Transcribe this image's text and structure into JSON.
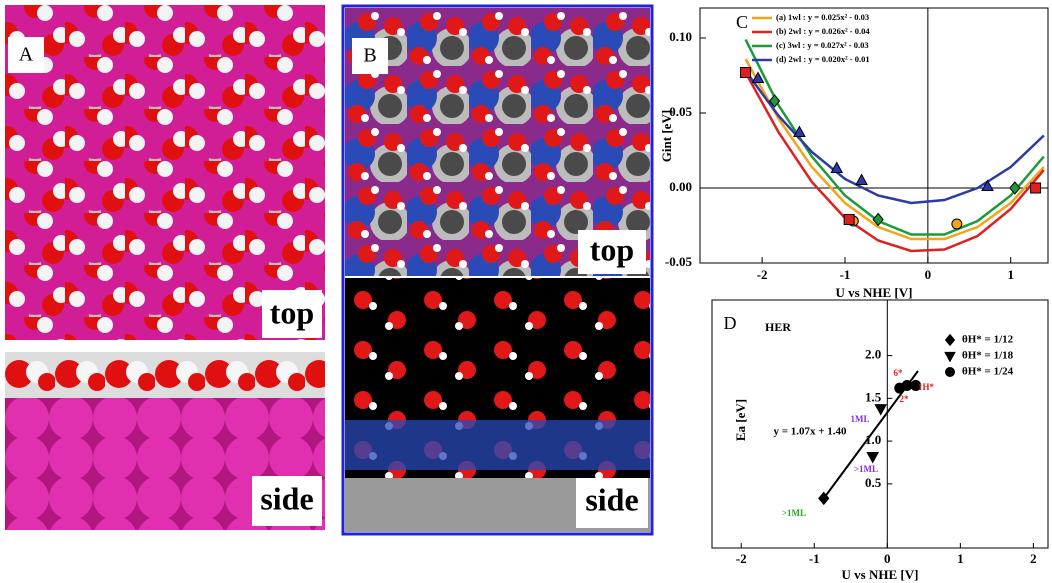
{
  "panels": [
    {
      "label": "A",
      "views": [
        "top",
        "side"
      ]
    },
    {
      "label": "B",
      "views": [
        "top",
        "side"
      ]
    }
  ],
  "chart_data": [
    {
      "type": "line",
      "panel": "C",
      "y_label": "Gint [eV]",
      "x_label": "U vs NHE [V]",
      "xlim": [
        -2.75,
        1.45
      ],
      "ylim": [
        -0.05,
        0.12
      ],
      "xticks": [
        -2,
        -1,
        0,
        1
      ],
      "yticks": [
        {
          "value": -0.05,
          "label": "-0.05"
        },
        {
          "value": 0,
          "label": "0.00"
        },
        {
          "value": 0.05,
          "label": "0.05"
        },
        {
          "value": 0.1,
          "label": "0.10"
        }
      ],
      "x": [
        -2.2,
        -1.8,
        -1.4,
        -1.0,
        -0.6,
        -0.2,
        0.2,
        0.6,
        1.0,
        1.4
      ],
      "series": [
        {
          "name": "(a) 1wl : y = 0.025x² - 0.03",
          "color": "#f2a51a",
          "marker": "circle",
          "values": [
            0.086,
            0.046,
            0.014,
            -0.01,
            -0.026,
            -0.034,
            -0.034,
            -0.026,
            -0.01,
            0.014
          ],
          "points_x": [
            -0.9,
            0.35
          ],
          "points_y": [
            -0.022,
            -0.024
          ]
        },
        {
          "name": "(b) 2wl : y = 0.026x² - 0.04",
          "color": "#e02020",
          "marker": "square",
          "values": [
            0.077,
            0.037,
            0.004,
            -0.02,
            -0.035,
            -0.042,
            -0.041,
            -0.032,
            -0.014,
            0.012
          ],
          "points_x": [
            -2.2,
            -0.95,
            1.3
          ],
          "points_y": [
            0.077,
            -0.021,
            0.0
          ]
        },
        {
          "name": "(c) 3wl : y = 0.027x² - 0.03",
          "color": "#1a9a3a",
          "marker": "diamond",
          "values": [
            0.099,
            0.055,
            0.021,
            -0.005,
            -0.022,
            -0.031,
            -0.031,
            -0.022,
            -0.005,
            0.021
          ],
          "points_x": [
            -1.85,
            -0.6,
            1.05
          ],
          "points_y": [
            0.058,
            -0.021,
            0.0
          ]
        },
        {
          "name": "(d) 2wl : y = 0.020x² - 0.01",
          "color": "#2a3aa8",
          "marker": "triangle",
          "values": [
            0.078,
            0.048,
            0.024,
            0.006,
            -0.005,
            -0.01,
            -0.008,
            0.0,
            0.014,
            0.035
          ],
          "points_x": [
            -2.05,
            -1.55,
            -1.1,
            -0.8,
            0.72
          ],
          "points_y": [
            0.073,
            0.037,
            0.013,
            0.005,
            0.001
          ]
        }
      ]
    },
    {
      "type": "scatter",
      "panel": "D",
      "title": "HER",
      "x_label": "U vs NHE [V]",
      "y_label": "Ea [eV]",
      "xlim": [
        -2.4,
        2.2
      ],
      "ylim": [
        -0.25,
        2.65
      ],
      "xticks": [
        -2,
        -1,
        0,
        1,
        2
      ],
      "yticks": [
        0.5,
        {
          "value": 1,
          "label": "1.0"
        },
        1.5,
        {
          "value": 2,
          "label": "2.0"
        }
      ],
      "series": [
        {
          "name": "θH* = 1/12",
          "color": "#000000",
          "marker": "diamond",
          "x": [
            -0.87
          ],
          "values": [
            0.33
          ]
        },
        {
          "name": "θH* = 1/18",
          "color": "#000000",
          "marker": "triangle-down",
          "x": [
            -0.09,
            -0.2
          ],
          "values": [
            1.38,
            0.82
          ]
        },
        {
          "name": "θH* = 1/24",
          "color": "#000000",
          "marker": "circle",
          "x": [
            0.17,
            0.27,
            0.39
          ],
          "values": [
            1.62,
            1.65,
            1.65
          ]
        }
      ],
      "fit": {
        "label": "y = 1.07x + 1.40",
        "x": [
          -0.87,
          0.42
        ],
        "values": [
          0.33,
          1.82
        ]
      },
      "annotations": [
        {
          "text": ">1ML",
          "color": "#22aa22"
        },
        {
          "text": "1ML",
          "color": "#8a2be2"
        },
        {
          "text": ">1ML",
          "color": "#8a2be2"
        },
        {
          "text": "6*",
          "color": "#e02020"
        },
        {
          "text": "2*",
          "color": "#e02020"
        },
        {
          "text": "1H*",
          "color": "#e02020"
        }
      ]
    }
  ]
}
